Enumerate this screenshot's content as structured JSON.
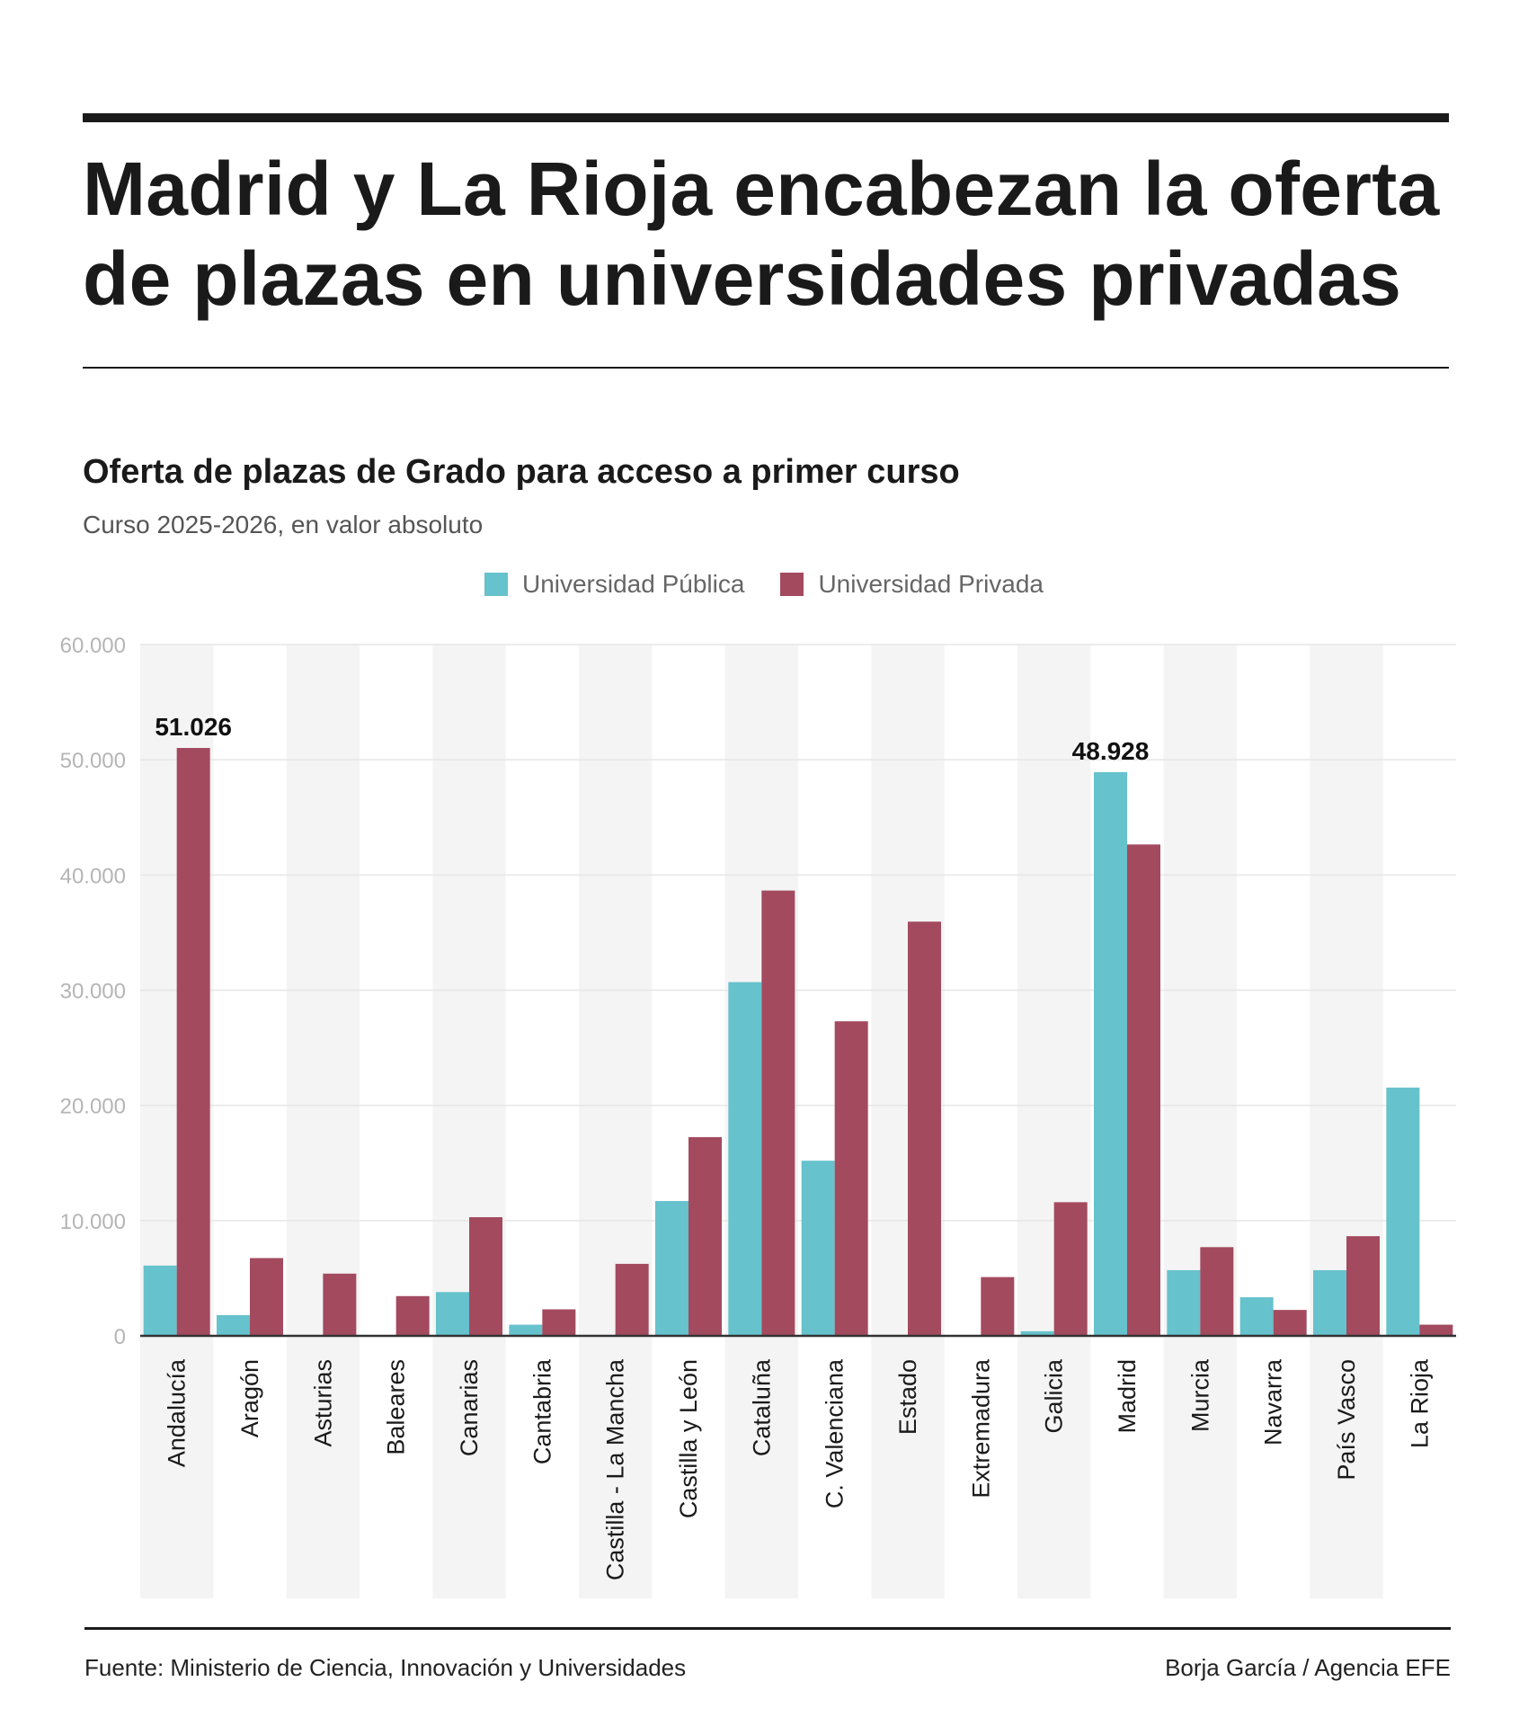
{
  "header": {
    "title_line1": "Madrid y La Rioja encabezan la oferta",
    "title_line2": "de plazas en universidades privadas"
  },
  "colors": {
    "publica": "#66C2CC",
    "privada": "#A34A5F",
    "stripe": "#F4F4F4",
    "gridline": "#E6E6E6",
    "axis_label": "#B5B5B5",
    "baseline": "#333333"
  },
  "chart_data": {
    "type": "bar",
    "title": "Oferta de plazas de Grado para acceso a primer curso",
    "subtitle": "Curso 2025-2026, en valor absoluto",
    "xlabel": "",
    "ylabel": "",
    "ylim": [
      0,
      60000
    ],
    "yticks": [
      0,
      10000,
      20000,
      30000,
      40000,
      50000,
      60000
    ],
    "ytick_labels": [
      "0",
      "10.000",
      "20.000",
      "30.000",
      "40.000",
      "50.000",
      "60.000"
    ],
    "grid": true,
    "legend_position": "top-center",
    "categories": [
      "Andalucía",
      "Aragón",
      "Asturias",
      "Baleares",
      "Canarias",
      "Cantabria",
      "Castilla - La Mancha",
      "Castilla y León",
      "Cataluña",
      "C. Valenciana",
      "Estado",
      "Extremadura",
      "Galicia",
      "Madrid",
      "Murcia",
      "Navarra",
      "País Vasco",
      "La Rioja"
    ],
    "series": [
      {
        "name": "Universidad Pública",
        "color_key": "publica",
        "values": [
          6100,
          1800,
          0,
          0,
          3800,
          970,
          0,
          11700,
          30700,
          15200,
          0,
          0,
          400,
          48928,
          5700,
          3350,
          5700,
          21550
        ]
      },
      {
        "name": "Universidad Privada",
        "color_key": "privada",
        "values": [
          51026,
          6750,
          5400,
          3450,
          10300,
          2300,
          6250,
          17250,
          38650,
          27300,
          35950,
          5100,
          11600,
          42650,
          7700,
          2250,
          8650,
          970
        ]
      }
    ],
    "annotations": [
      {
        "category": "Andalucía",
        "series": "Universidad Privada",
        "label": "51.026"
      },
      {
        "category": "Madrid",
        "series": "Universidad Pública",
        "label": "48.928"
      }
    ]
  },
  "footer": {
    "source": "Fuente: Ministerio de Ciencia, Innovación y Universidades",
    "credit": "Borja García / Agencia EFE"
  }
}
